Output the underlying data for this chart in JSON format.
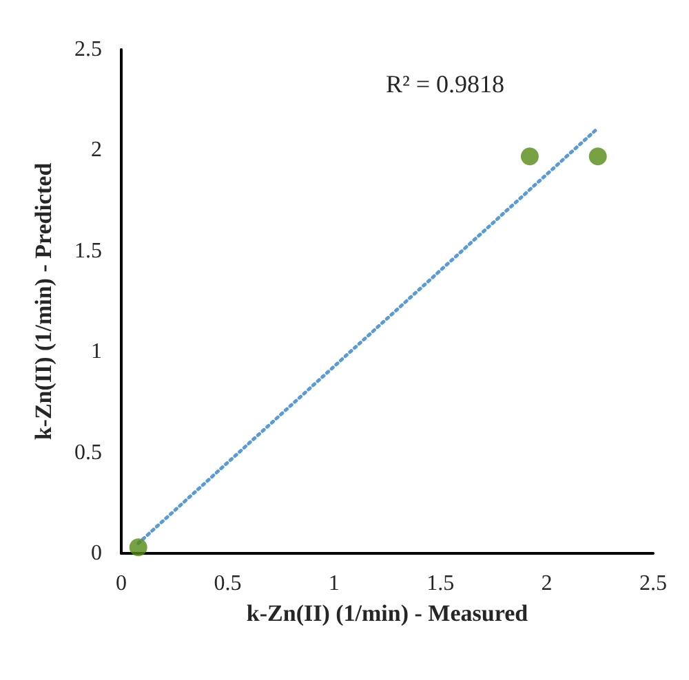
{
  "chart_data": {
    "type": "scatter",
    "xlabel": "k-Zn(II) (1/min) - Measured",
    "ylabel": "k-Zn(II) (1/min) - Predicted",
    "annotations": [
      "R² = 0.9818"
    ],
    "xlim": [
      0,
      2.5
    ],
    "xticks": [
      0,
      0.5,
      1,
      1.5,
      2,
      2.5
    ],
    "ylim": [
      0,
      2.5
    ],
    "yticks": [
      0,
      0.5,
      1,
      1.5,
      2,
      2.5
    ],
    "grid": false,
    "series": [
      {
        "color": "#548b14",
        "marker": "circle",
        "x": [
          0.08,
          1.92,
          2.24
        ],
        "values": [
          0.03,
          1.97,
          1.97
        ]
      },
      {
        "type": "line",
        "color": "#5b9bd5",
        "line_style": "dotted",
        "marker": "none",
        "x": [
          0.08,
          2.24
        ],
        "values": [
          0.05,
          2.11
        ]
      }
    ]
  }
}
